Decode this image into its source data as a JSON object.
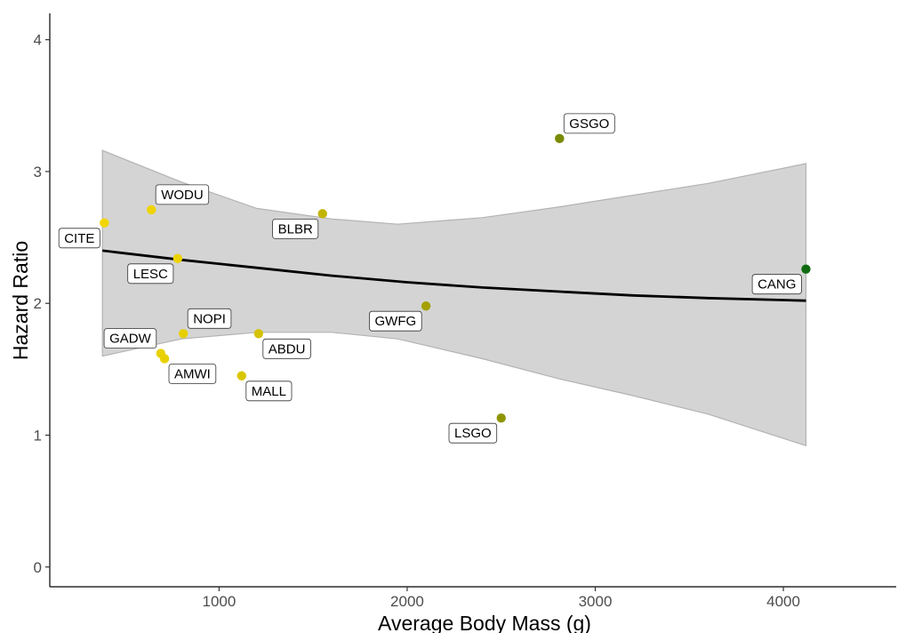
{
  "chart_data": {
    "type": "scatter",
    "xlabel": "Average Body Mass (g)",
    "ylabel": "Hazard Ratio",
    "xlim": [
      100,
      4600
    ],
    "ylim": [
      -0.15,
      4.2
    ],
    "x_ticks": [
      1000,
      2000,
      3000,
      4000
    ],
    "y_ticks": [
      0,
      1,
      2,
      3,
      4
    ],
    "x_tick_labels": [
      "1000",
      "2000",
      "3000",
      "4000"
    ],
    "y_tick_labels": [
      "0",
      "1",
      "2",
      "3",
      "4"
    ],
    "grid": false,
    "points": [
      {
        "label": "CITE",
        "x": 390,
        "y": 2.61,
        "color": "#f2d600",
        "label_pos": "bottom-left"
      },
      {
        "label": "WODU",
        "x": 640,
        "y": 2.71,
        "color": "#eed400",
        "label_pos": "top-right"
      },
      {
        "label": "LESC",
        "x": 780,
        "y": 2.34,
        "color": "#ecd300",
        "label_pos": "bottom-left"
      },
      {
        "label": "NOPI",
        "x": 810,
        "y": 1.77,
        "color": "#e6cf00",
        "label_pos": "top-right"
      },
      {
        "label": "GADW",
        "x": 690,
        "y": 1.62,
        "color": "#e9d100",
        "label_pos": "top-left"
      },
      {
        "label": "AMWI",
        "x": 710,
        "y": 1.58,
        "color": "#e8d000",
        "label_pos": "bottom-right"
      },
      {
        "label": "MALL",
        "x": 1120,
        "y": 1.45,
        "color": "#d9c600",
        "label_pos": "bottom-right"
      },
      {
        "label": "ABDU",
        "x": 1210,
        "y": 1.77,
        "color": "#d4c200",
        "label_pos": "bottom-right"
      },
      {
        "label": "BLBR",
        "x": 1550,
        "y": 2.68,
        "color": "#c2b400",
        "label_pos": "bottom-left"
      },
      {
        "label": "GWFG",
        "x": 2100,
        "y": 1.98,
        "color": "#a3a000",
        "label_pos": "bottom-left"
      },
      {
        "label": "LSGO",
        "x": 2500,
        "y": 1.13,
        "color": "#8f9500",
        "label_pos": "bottom-left"
      },
      {
        "label": "GSGO",
        "x": 2810,
        "y": 3.25,
        "color": "#7a8a00",
        "label_pos": "top-right"
      },
      {
        "label": "CANG",
        "x": 4120,
        "y": 2.26,
        "color": "#0f6a12",
        "label_pos": "bottom-left"
      }
    ],
    "trend_line": {
      "color": "#000000",
      "x": [
        380,
        800,
        1200,
        1600,
        2000,
        2400,
        2800,
        3200,
        3600,
        4120
      ],
      "y": [
        2.4,
        2.33,
        2.27,
        2.21,
        2.16,
        2.12,
        2.09,
        2.06,
        2.04,
        2.02
      ]
    },
    "confidence_band": {
      "color": "#d4d4d4",
      "edge_color": "#b3b3b3",
      "x": [
        380,
        800,
        1200,
        1600,
        1950,
        2400,
        2800,
        3200,
        3600,
        4120
      ],
      "upper": [
        3.16,
        2.92,
        2.72,
        2.64,
        2.6,
        2.65,
        2.73,
        2.82,
        2.91,
        3.06
      ],
      "lower": [
        1.6,
        1.73,
        1.78,
        1.78,
        1.73,
        1.58,
        1.43,
        1.3,
        1.16,
        0.92
      ]
    }
  }
}
